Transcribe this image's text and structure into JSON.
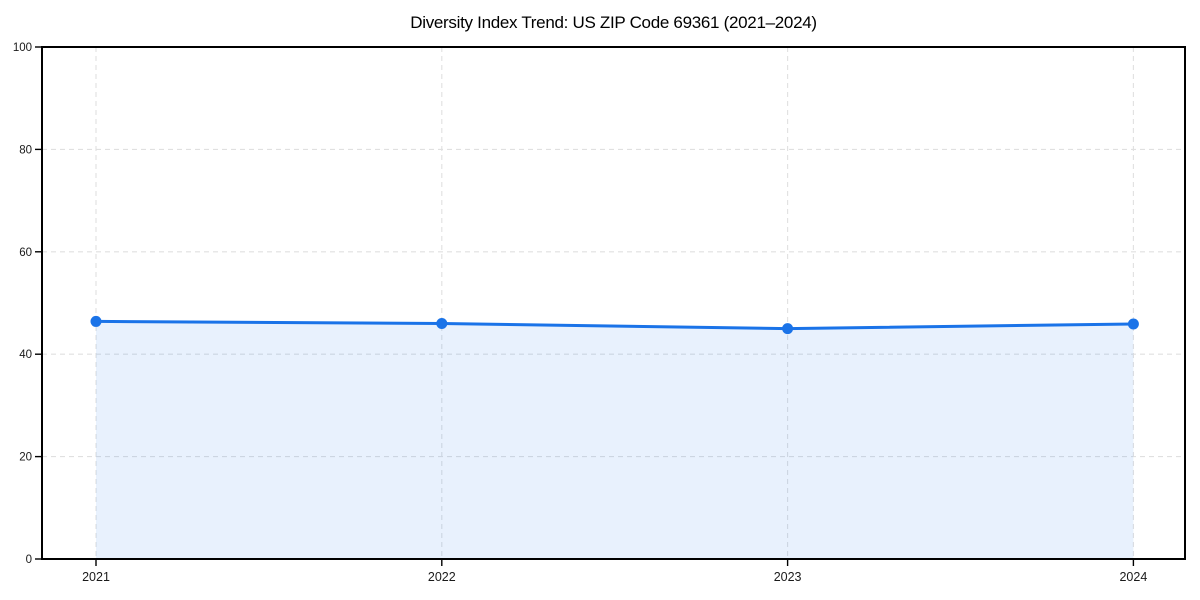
{
  "chart_data": {
    "type": "area",
    "title": "Diversity Index Trend: US ZIP Code 69361 (2021–2024)",
    "categories": [
      "2021",
      "2022",
      "2023",
      "2024"
    ],
    "series": [
      {
        "name": "Diversity Index",
        "values": [
          46.4,
          46.0,
          45.0,
          45.9
        ]
      }
    ],
    "xlabel": "",
    "ylabel": "",
    "ylim": [
      0,
      100
    ],
    "yticks": [
      0,
      20,
      40,
      60,
      80,
      100
    ],
    "grid": "dashed",
    "legend_position": "none",
    "colors": {
      "line": "#1a73e8",
      "marker": "#1a73e8",
      "fill": "#1a73e8",
      "fill_opacity": 0.1,
      "grid": "#e0e0e0",
      "axis": "#000000",
      "tick_text": "#1a1a1a"
    }
  }
}
